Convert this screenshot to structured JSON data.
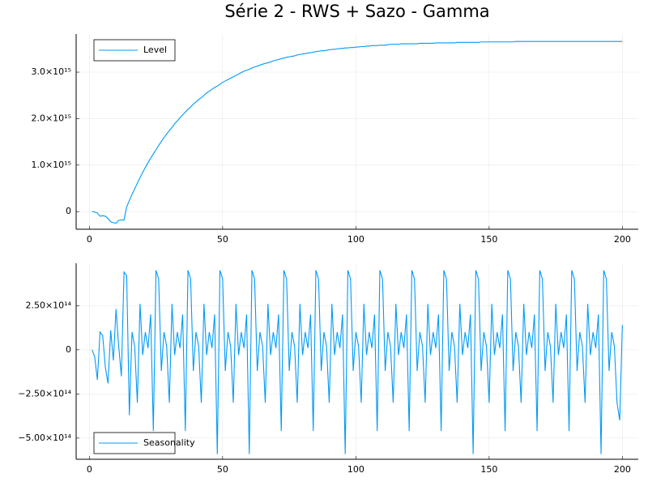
{
  "title": "Série 2 - RWS + Sazo - Gamma",
  "chart_data": [
    {
      "type": "line",
      "grid": true,
      "legend": "topleft",
      "x": [
        1,
        2,
        3,
        4,
        5,
        6,
        7,
        8,
        9,
        10,
        11,
        12,
        13,
        14,
        15,
        16,
        17,
        18,
        19,
        20,
        21,
        22,
        23,
        24,
        25,
        26,
        27,
        28,
        29,
        30,
        31,
        32,
        33,
        34,
        35,
        36,
        37,
        38,
        39,
        40,
        41,
        42,
        43,
        44,
        45,
        46,
        47,
        48,
        49,
        50,
        51,
        52,
        53,
        54,
        55,
        56,
        57,
        58,
        59,
        60,
        61,
        62,
        63,
        64,
        65,
        66,
        67,
        68,
        69,
        70,
        71,
        72,
        73,
        74,
        75,
        76,
        77,
        78,
        79,
        80,
        81,
        82,
        83,
        84,
        85,
        86,
        87,
        88,
        89,
        90,
        91,
        92,
        93,
        94,
        95,
        96,
        97,
        98,
        99,
        100,
        101,
        102,
        103,
        104,
        105,
        106,
        107,
        108,
        109,
        110,
        111,
        112,
        113,
        114,
        115,
        116,
        117,
        118,
        119,
        120,
        121,
        122,
        123,
        124,
        125,
        126,
        127,
        128,
        129,
        130,
        131,
        132,
        133,
        134,
        135,
        136,
        137,
        138,
        139,
        140,
        141,
        142,
        143,
        144,
        145,
        146,
        147,
        148,
        149,
        150,
        151,
        152,
        153,
        154,
        155,
        156,
        157,
        158,
        159,
        160,
        161,
        162,
        163,
        164,
        165,
        166,
        167,
        168,
        169,
        170,
        171,
        172,
        173,
        174,
        175,
        176,
        177,
        178,
        179,
        180,
        181,
        182,
        183,
        184,
        185,
        186,
        187,
        188,
        189,
        190,
        191,
        192,
        193,
        194,
        195,
        196,
        197,
        198,
        199,
        200
      ],
      "series": [
        {
          "name": "Level",
          "color": "#009af9",
          "values": [
            0,
            -10000000000000.0,
            -30000000000000.0,
            -100000000000000.0,
            -90000000000000.0,
            -100000000000000.0,
            -150000000000000.0,
            -220000000000000.0,
            -240000000000000.0,
            -250000000000000.0,
            -190000000000000.0,
            -180000000000000.0,
            -180000000000000.0,
            100000000000000.0,
            240000000000000.0,
            370000000000000.0,
            490000000000000.0,
            610000000000000.0,
            730000000000000.0,
            840000000000000.0,
            950000000000000.0,
            1050000000000000.0,
            1150000000000000.0,
            1240000000000000.0,
            1330000000000000.0,
            1420000000000000.0,
            1510000000000000.0,
            1590000000000000.0,
            1670000000000000.0,
            1740000000000000.0,
            1810000000000000.0,
            1890000000000000.0,
            1950000000000000.0,
            2020000000000000.0,
            2080000000000000.0,
            2140000000000000.0,
            2200000000000000.0,
            2250000000000000.0,
            2310000000000000.0,
            2360000000000000.0,
            2410000000000000.0,
            2450000000000000.0,
            2500000000000000.0,
            2550000000000000.0,
            2590000000000000.0,
            2630000000000000.0,
            2670000000000000.0,
            2700000000000000.0,
            2740000000000000.0,
            2780000000000000.0,
            2810000000000000.0,
            2840000000000000.0,
            2870000000000000.0,
            2900000000000000.0,
            2930000000000000.0,
            2960000000000000.0,
            2990000000000000.0,
            3020000000000000.0,
            3040000000000000.0,
            3060000000000000.0,
            3090000000000000.0,
            3110000000000000.0,
            3130000000000000.0,
            3150000000000000.0,
            3170000000000000.0,
            3190000000000000.0,
            3200000000000000.0,
            3220000000000000.0,
            3240000000000000.0,
            3260000000000000.0,
            3270000000000000.0,
            3290000000000000.0,
            3300000000000000.0,
            3320000000000000.0,
            3330000000000000.0,
            3340000000000000.0,
            3350000000000000.0,
            3370000000000000.0,
            3380000000000000.0,
            3390000000000000.0,
            3400000000000000.0,
            3410000000000000.0,
            3420000000000000.0,
            3430000000000000.0,
            3440000000000000.0,
            3450000000000000.0,
            3460000000000000.0,
            3460000000000000.0,
            3470000000000000.0,
            3480000000000000.0,
            3490000000000000.0,
            3490000000000000.0,
            3500000000000000.0,
            3510000000000000.0,
            3510000000000000.0,
            3520000000000000.0,
            3520000000000000.0,
            3530000000000000.0,
            3530000000000000.0,
            3540000000000000.0,
            3540000000000000.0,
            3550000000000000.0,
            3550000000000000.0,
            3560000000000000.0,
            3560000000000000.0,
            3570000000000000.0,
            3570000000000000.0,
            3570000000000000.0,
            3580000000000000.0,
            3580000000000000.0,
            3580000000000000.0,
            3590000000000000.0,
            3600000000000000.0,
            3600000000000000.0,
            3600000000000000.0,
            3600000000000000.0,
            3610000000000000.0,
            3610000000000000.0,
            3610000000000000.0,
            3610000000000000.0,
            3610000000000000.0,
            3610000000000000.0,
            3610000000000000.0,
            3620000000000000.0,
            3620000000000000.0,
            3620000000000000.0,
            3620000000000000.0,
            3620000000000000.0,
            3620000000000000.0,
            3630000000000000.0,
            3630000000000000.0,
            3630000000000000.0,
            3630000000000000.0,
            3630000000000000.0,
            3630000000000000.0,
            3630000000000000.0,
            3630000000000000.0,
            3640000000000000.0,
            3640000000000000.0,
            3640000000000000.0,
            3640000000000000.0,
            3640000000000000.0,
            3640000000000000.0,
            3640000000000000.0,
            3640000000000000.0,
            3640000000000000.0,
            3650000000000000.0,
            3650000000000000.0,
            3650000000000000.0,
            3650000000000000.0,
            3650000000000000.0,
            3650000000000000.0,
            3650000000000000.0,
            3650000000000000.0,
            3650000000000000.0,
            3650000000000000.0,
            3650000000000000.0,
            3650000000000000.0,
            3650000000000000.0,
            3660000000000000.0,
            3660000000000000.0,
            3660000000000000.0,
            3660000000000000.0,
            3660000000000000.0,
            3660000000000000.0,
            3660000000000000.0,
            3660000000000000.0,
            3660000000000000.0,
            3660000000000000.0,
            3660000000000000.0,
            3660000000000000.0,
            3660000000000000.0,
            3660000000000000.0,
            3660000000000000.0,
            3660000000000000.0,
            3660000000000000.0,
            3660000000000000.0,
            3660000000000000.0,
            3660000000000000.0,
            3660000000000000.0,
            3660000000000000.0,
            3660000000000000.0,
            3660000000000000.0,
            3660000000000000.0,
            3660000000000000.0,
            3660000000000000.0,
            3660000000000000.0,
            3660000000000000.0,
            3660000000000000.0,
            3660000000000000.0,
            3660000000000000.0,
            3660000000000000.0,
            3660000000000000.0,
            3660000000000000.0,
            3660000000000000.0,
            3660000000000000.0,
            3660000000000000.0,
            3660000000000000.0,
            3660000000000000.0,
            3660000000000000.0
          ]
        }
      ],
      "xlim": [
        -4.97,
        205.97
      ],
      "xticks": [
        0,
        50,
        100,
        150,
        200
      ],
      "ylim": [
        -380000000000000.0,
        3820000000000000.0
      ],
      "yticks": [
        0,
        {
          "value": 1000000000000000.0,
          "label": "1.0×10¹⁵"
        },
        {
          "value": 2000000000000000.0,
          "label": "2.0×10¹⁵"
        },
        {
          "value": 3000000000000000.0,
          "label": "3.0×10¹⁵"
        }
      ]
    },
    {
      "type": "line",
      "grid": true,
      "legend": "bottomleft",
      "x": [
        1,
        2,
        3,
        4,
        5,
        6,
        7,
        8,
        9,
        10,
        11,
        12,
        13,
        14,
        15,
        16,
        17,
        18,
        19,
        20,
        21,
        22,
        23,
        24,
        25,
        26,
        27,
        28,
        29,
        30,
        31,
        32,
        33,
        34,
        35,
        36,
        37,
        38,
        39,
        40,
        41,
        42,
        43,
        44,
        45,
        46,
        47,
        48,
        49,
        50,
        51,
        52,
        53,
        54,
        55,
        56,
        57,
        58,
        59,
        60,
        61,
        62,
        63,
        64,
        65,
        66,
        67,
        68,
        69,
        70,
        71,
        72,
        73,
        74,
        75,
        76,
        77,
        78,
        79,
        80,
        81,
        82,
        83,
        84,
        85,
        86,
        87,
        88,
        89,
        90,
        91,
        92,
        93,
        94,
        95,
        96,
        97,
        98,
        99,
        100,
        101,
        102,
        103,
        104,
        105,
        106,
        107,
        108,
        109,
        110,
        111,
        112,
        113,
        114,
        115,
        116,
        117,
        118,
        119,
        120,
        121,
        122,
        123,
        124,
        125,
        126,
        127,
        128,
        129,
        130,
        131,
        132,
        133,
        134,
        135,
        136,
        137,
        138,
        139,
        140,
        141,
        142,
        143,
        144,
        145,
        146,
        147,
        148,
        149,
        150,
        151,
        152,
        153,
        154,
        155,
        156,
        157,
        158,
        159,
        160,
        161,
        162,
        163,
        164,
        165,
        166,
        167,
        168,
        169,
        170,
        171,
        172,
        173,
        174,
        175,
        176,
        177,
        178,
        179,
        180,
        181,
        182,
        183,
        184,
        185,
        186,
        187,
        188,
        189,
        190,
        191,
        192,
        193,
        194,
        195,
        196,
        197,
        198,
        199,
        200
      ],
      "series": [
        {
          "name": "Seasonality",
          "color": "#009af9",
          "values": [
            0,
            -40000000000000.0,
            -170000000000000.0,
            100000000000000.0,
            80000000000000.0,
            -100000000000000.0,
            -190000000000000.0,
            110000000000000.0,
            -60000000000000.0,
            230000000000000.0,
            20000000000000.0,
            -150000000000000.0,
            440000000000000.0,
            420000000000000.0,
            -370000000000000.0,
            100000000000000.0,
            20000000000000.0,
            -300000000000000.0,
            260000000000000.0,
            -30000000000000.0,
            100000000000000.0,
            10000000000000.0,
            200000000000000.0,
            -460000000000000.0,
            450000000000000.0,
            400000000000000.0,
            -120000000000000.0,
            100000000000000.0,
            20000000000000.0,
            -300000000000000.0,
            260000000000000.0,
            -30000000000000.0,
            100000000000000.0,
            10000000000000.0,
            200000000000000.0,
            -460000000000000.0,
            450000000000000.0,
            400000000000000.0,
            -120000000000000.0,
            100000000000000.0,
            20000000000000.0,
            -300000000000000.0,
            260000000000000.0,
            -30000000000000.0,
            100000000000000.0,
            10000000000000.0,
            200000000000000.0,
            -590000000000000.0,
            450000000000000.0,
            400000000000000.0,
            -120000000000000.0,
            100000000000000.0,
            20000000000000.0,
            -300000000000000.0,
            260000000000000.0,
            -30000000000000.0,
            100000000000000.0,
            10000000000000.0,
            200000000000000.0,
            -590000000000000.0,
            450000000000000.0,
            400000000000000.0,
            -120000000000000.0,
            100000000000000.0,
            20000000000000.0,
            -300000000000000.0,
            260000000000000.0,
            -30000000000000.0,
            100000000000000.0,
            10000000000000.0,
            200000000000000.0,
            -460000000000000.0,
            450000000000000.0,
            400000000000000.0,
            -120000000000000.0,
            100000000000000.0,
            20000000000000.0,
            -300000000000000.0,
            260000000000000.0,
            -30000000000000.0,
            100000000000000.0,
            10000000000000.0,
            200000000000000.0,
            -460000000000000.0,
            450000000000000.0,
            400000000000000.0,
            -120000000000000.0,
            100000000000000.0,
            20000000000000.0,
            -300000000000000.0,
            260000000000000.0,
            -30000000000000.0,
            100000000000000.0,
            10000000000000.0,
            200000000000000.0,
            -590000000000000.0,
            450000000000000.0,
            400000000000000.0,
            -120000000000000.0,
            100000000000000.0,
            20000000000000.0,
            -300000000000000.0,
            260000000000000.0,
            -30000000000000.0,
            100000000000000.0,
            10000000000000.0,
            200000000000000.0,
            -460000000000000.0,
            450000000000000.0,
            400000000000000.0,
            -120000000000000.0,
            100000000000000.0,
            20000000000000.0,
            -300000000000000.0,
            260000000000000.0,
            -30000000000000.0,
            100000000000000.0,
            10000000000000.0,
            200000000000000.0,
            -460000000000000.0,
            450000000000000.0,
            400000000000000.0,
            -120000000000000.0,
            100000000000000.0,
            20000000000000.0,
            -300000000000000.0,
            260000000000000.0,
            -30000000000000.0,
            100000000000000.0,
            10000000000000.0,
            200000000000000.0,
            -460000000000000.0,
            450000000000000.0,
            400000000000000.0,
            -120000000000000.0,
            100000000000000.0,
            20000000000000.0,
            -300000000000000.0,
            260000000000000.0,
            -30000000000000.0,
            100000000000000.0,
            10000000000000.0,
            200000000000000.0,
            -590000000000000.0,
            450000000000000.0,
            400000000000000.0,
            -120000000000000.0,
            100000000000000.0,
            20000000000000.0,
            -300000000000000.0,
            260000000000000.0,
            -30000000000000.0,
            100000000000000.0,
            10000000000000.0,
            200000000000000.0,
            -460000000000000.0,
            450000000000000.0,
            400000000000000.0,
            -120000000000000.0,
            100000000000000.0,
            20000000000000.0,
            -300000000000000.0,
            260000000000000.0,
            -30000000000000.0,
            100000000000000.0,
            10000000000000.0,
            200000000000000.0,
            -460000000000000.0,
            450000000000000.0,
            400000000000000.0,
            -120000000000000.0,
            100000000000000.0,
            20000000000000.0,
            -300000000000000.0,
            260000000000000.0,
            -30000000000000.0,
            100000000000000.0,
            10000000000000.0,
            200000000000000.0,
            -460000000000000.0,
            450000000000000.0,
            400000000000000.0,
            -120000000000000.0,
            100000000000000.0,
            20000000000000.0,
            -300000000000000.0,
            260000000000000.0,
            -30000000000000.0,
            100000000000000.0,
            10000000000000.0,
            200000000000000.0,
            -590000000000000.0,
            450000000000000.0,
            400000000000000.0,
            -120000000000000.0,
            100000000000000.0,
            20000000000000.0,
            -300000000000000.0,
            -400000000000000.0,
            140000000000000.0
          ]
        }
      ],
      "xlim": [
        -4.97,
        205.97
      ],
      "xticks": [
        0,
        50,
        100,
        150,
        200
      ],
      "ylim": [
        -620000000000000.0,
        490000000000000.0
      ],
      "yticks": [
        {
          "value": -500000000000000.0,
          "label": "−5.00×10¹⁴"
        },
        {
          "value": -250000000000000.0,
          "label": "−2.50×10¹⁴"
        },
        0,
        {
          "value": 250000000000000.0,
          "label": "2.50×10¹⁴"
        }
      ]
    }
  ]
}
